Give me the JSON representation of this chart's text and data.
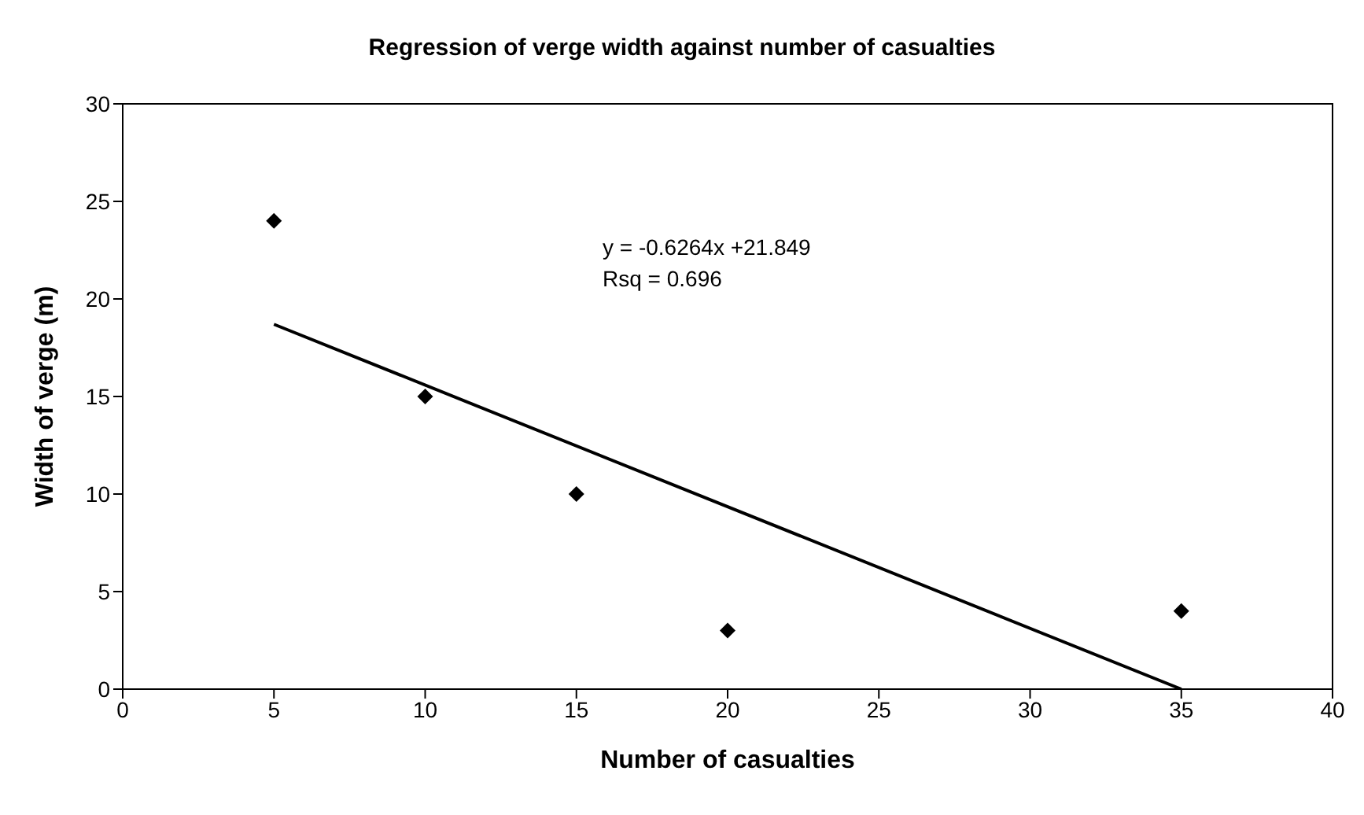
{
  "chart_data": {
    "type": "scatter",
    "title": "Regression of verge width against number of casualties",
    "xlabel": "Number of casualties",
    "ylabel": "Width of verge (m)",
    "x": [
      5,
      10,
      15,
      20,
      35
    ],
    "series": [
      {
        "color": "#000000",
        "marker": "diamond",
        "values": [
          24,
          15,
          10,
          3,
          4
        ]
      },
      {
        "type": "line",
        "color": "#000000",
        "marker": "none",
        "x": [
          5,
          35
        ],
        "values": [
          18.7,
          0.0
        ]
      }
    ],
    "annotations": [
      "y = -0.6264x +21.849",
      "Rsq = 0.696"
    ],
    "xlim": [
      0,
      40
    ],
    "xticks": [
      0,
      5,
      10,
      15,
      20,
      25,
      30,
      35,
      40
    ],
    "ylim": [
      0,
      30
    ],
    "yticks": [
      0,
      5,
      10,
      15,
      20,
      25,
      30
    ],
    "grid": false
  }
}
